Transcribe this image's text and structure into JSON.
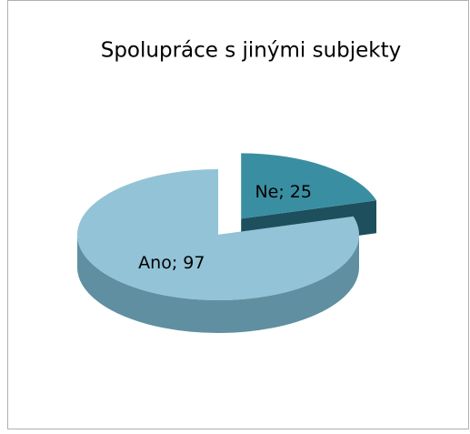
{
  "chart_data": {
    "type": "pie",
    "title": "Spolupráce s jinými subjekty",
    "categories": [
      "Ne",
      "Ano"
    ],
    "values": [
      25,
      97
    ],
    "value_labels": [
      "Ne; 25",
      "Ano; 97"
    ],
    "colors": [
      "#3a8ea2",
      "#93c3d6"
    ],
    "side_colors": [
      "#1e4f5c",
      "#5f8fa1"
    ],
    "exploded": [
      true,
      false
    ]
  }
}
